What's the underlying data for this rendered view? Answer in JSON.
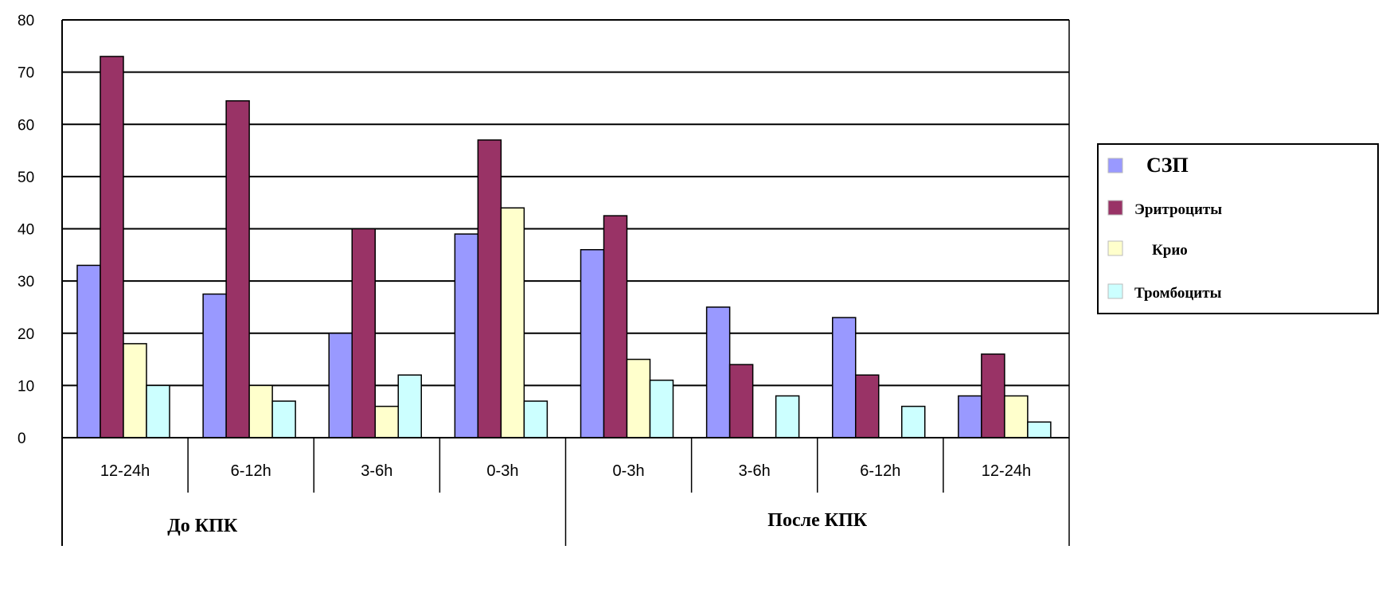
{
  "chart_data": {
    "type": "bar",
    "ylim": [
      0,
      80
    ],
    "yticks": [
      0,
      10,
      20,
      30,
      40,
      50,
      60,
      70,
      80
    ],
    "grid": true,
    "legend_position": "right",
    "categories": [
      "12-24h",
      "6-12h",
      "3-6h",
      "0-3h",
      "0-3h",
      "3-6h",
      "6-12h",
      "12-24h"
    ],
    "groups": [
      {
        "label": "До КПК",
        "span": [
          0,
          3
        ]
      },
      {
        "label": "После КПК",
        "span": [
          4,
          7
        ]
      }
    ],
    "series": [
      {
        "name": "СЗП",
        "color": "#9999ff",
        "values": [
          33,
          27.5,
          20,
          39,
          36,
          25,
          23,
          8
        ]
      },
      {
        "name": "Эритроциты",
        "color": "#993366",
        "values": [
          73,
          64.5,
          40,
          57,
          42.5,
          14,
          12,
          16
        ]
      },
      {
        "name": "Крио",
        "color": "#ffffcc",
        "values": [
          18,
          10,
          6,
          44,
          15,
          0,
          0,
          8
        ]
      },
      {
        "name": "Тромбоциты",
        "color": "#ccffff",
        "values": [
          10,
          7,
          12,
          7,
          11,
          8,
          6,
          3
        ]
      }
    ]
  }
}
